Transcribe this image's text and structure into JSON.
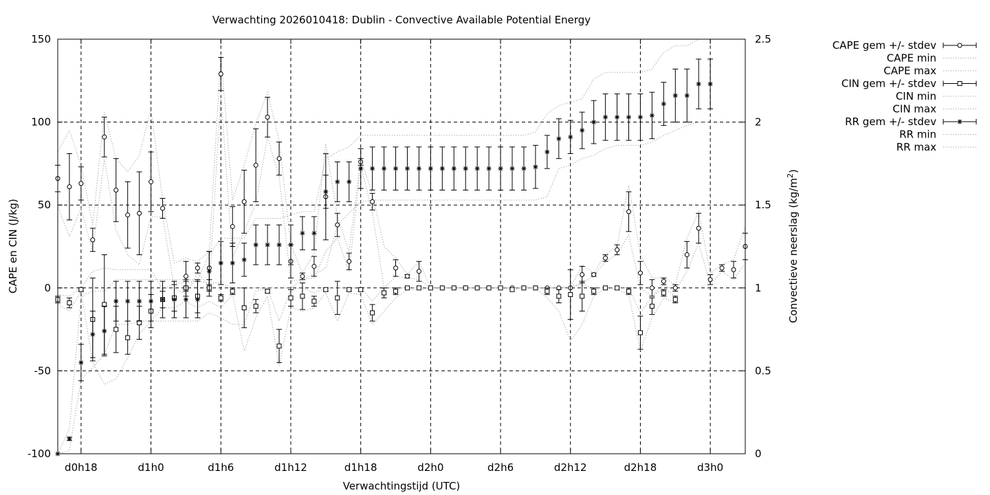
{
  "chart_data": {
    "type": "line",
    "title": "Verwachting 2026010418: Dublin - Convective Available Potential Energy",
    "xlabel": "Verwachtingstijd (UTC)",
    "ylabel": "CAPE en CIN (J/kg)",
    "y2label_main": "Convectieve neerslag (kg/m",
    "y2label_sup": "2",
    "y2label_end": ")",
    "x_ticks": [
      "d0h18",
      "d1h0",
      "d1h6",
      "d1h12",
      "d1h18",
      "d2h0",
      "d2h6",
      "d2h12",
      "d2h18",
      "d3h0"
    ],
    "x_range_hours": [
      -2,
      57
    ],
    "x_step_hours": 1,
    "ylim": [
      -100,
      150
    ],
    "y_ticks": [
      "-100",
      "-50",
      "0",
      "50",
      "100",
      "150"
    ],
    "y2lim": [
      0,
      2.5
    ],
    "y2_ticks": [
      "0",
      "0.5",
      "1",
      "1.5",
      "2",
      "2.5"
    ],
    "grid": true,
    "legend_position": "outside-right-top",
    "series": [
      {
        "name": "CAPE gem +/- stdev",
        "marker": "circle",
        "axis": "left",
        "mean": [
          66,
          61,
          63,
          29,
          91,
          59,
          44,
          45,
          64,
          48,
          null,
          7,
          12,
          12,
          129,
          37,
          52,
          74,
          103,
          78,
          16,
          7,
          13,
          55,
          38,
          16,
          76,
          52,
          null,
          12,
          7,
          10,
          0,
          0,
          0,
          0,
          0,
          0,
          0,
          0,
          0,
          0,
          0,
          0,
          0,
          8,
          8,
          18,
          23,
          46,
          9,
          0,
          4,
          0,
          20,
          36,
          5,
          12,
          11,
          25
        ],
        "sd": [
          8,
          20,
          10,
          7,
          12,
          19,
          20,
          25,
          18,
          6,
          null,
          9,
          3,
          10,
          10,
          12,
          19,
          22,
          12,
          10,
          10,
          2,
          6,
          26,
          7,
          5,
          2,
          5,
          null,
          5,
          1,
          6,
          0,
          0,
          0,
          0,
          0,
          0,
          0,
          0,
          0,
          0,
          0,
          0,
          0,
          5,
          1,
          2,
          3,
          12,
          7,
          5,
          2,
          2,
          8,
          9,
          3,
          2,
          5,
          8
        ]
      },
      {
        "name": "CAPE min",
        "axis": "left",
        "line": "dotted",
        "values": [
          49,
          31,
          48,
          22,
          78,
          35,
          20,
          14,
          43,
          43,
          0,
          -4,
          9,
          1,
          117,
          18,
          34,
          51,
          91,
          67,
          4,
          5,
          6,
          22,
          30,
          10,
          74,
          46,
          0,
          7,
          6,
          5,
          0,
          0,
          0,
          0,
          0,
          0,
          0,
          0,
          0,
          0,
          0,
          0,
          0,
          3,
          7,
          16,
          20,
          32,
          0,
          -5,
          2,
          -2,
          10,
          27,
          2,
          10,
          5,
          15
        ]
      },
      {
        "name": "CAPE max",
        "axis": "left",
        "line": "dotted",
        "values": [
          82,
          95,
          74,
          38,
          106,
          78,
          70,
          80,
          108,
          53,
          15,
          18,
          16,
          22,
          141,
          53,
          74,
          99,
          118,
          89,
          26,
          9,
          21,
          87,
          43,
          22,
          78,
          57,
          25,
          18,
          8,
          16,
          0,
          0,
          0,
          0,
          0,
          0,
          0,
          0,
          0,
          0,
          0,
          0,
          0,
          14,
          9,
          20,
          26,
          62,
          20,
          6,
          6,
          2,
          30,
          46,
          9,
          14,
          17,
          37
        ]
      },
      {
        "name": "CIN gem +/- stdev",
        "marker": "square",
        "axis": "left",
        "mean": [
          -7,
          -9,
          -1,
          -19,
          -10,
          -25,
          -30,
          -21,
          -14,
          -7,
          -6,
          0,
          -5,
          0,
          -6,
          -2,
          -12,
          -11,
          -2,
          -35,
          -6,
          -5,
          -8,
          -1,
          -6,
          -1,
          -1,
          -15,
          -3,
          -2,
          0,
          0,
          0,
          0,
          0,
          0,
          0,
          0,
          0,
          -1,
          0,
          0,
          -2,
          -5,
          -4,
          -5,
          -2,
          0,
          0,
          -2,
          -27,
          -11,
          -3,
          -7
        ],
        "sd": [
          2,
          3,
          1,
          25,
          30,
          14,
          10,
          10,
          10,
          5,
          8,
          5,
          10,
          5,
          2,
          2,
          12,
          4,
          1,
          10,
          5,
          8,
          3,
          1,
          10,
          1,
          1,
          5,
          3,
          2,
          0,
          0,
          0,
          0,
          0,
          0,
          0,
          0,
          0,
          0,
          0,
          0,
          2,
          4,
          15,
          9,
          2,
          0,
          0,
          2,
          10,
          5,
          2,
          2
        ]
      },
      {
        "name": "CIN min",
        "axis": "left",
        "line": "dotted",
        "values": [
          -10,
          -14,
          -2,
          -45,
          -58,
          -55,
          -42,
          -28,
          -20,
          -12,
          -12,
          -8,
          -12,
          -8,
          -12,
          -4,
          -38,
          -18,
          -5,
          -47,
          -12,
          -14,
          -12,
          -3,
          -20,
          -3,
          -4,
          -22,
          -14,
          -6,
          -1,
          -1,
          0,
          0,
          0,
          0,
          0,
          0,
          0,
          -1,
          0,
          0,
          -6,
          -14,
          -32,
          -22,
          -5,
          0,
          -1,
          -4,
          -38,
          -18,
          -6,
          -9
        ]
      },
      {
        "name": "CIN max",
        "axis": "left",
        "line": "dotted",
        "values": [
          -4,
          -5,
          0,
          10,
          12,
          11,
          11,
          11,
          11,
          -1,
          3,
          3,
          4,
          3,
          3,
          0,
          0,
          0,
          0,
          -20,
          -1,
          0,
          -3,
          0,
          0,
          0,
          0,
          -8,
          0,
          0,
          0,
          0,
          0,
          0,
          0,
          0,
          0,
          0,
          0,
          0,
          0,
          0,
          0,
          0,
          1,
          2,
          0,
          0,
          0,
          0,
          -15,
          -5,
          0,
          -5
        ]
      },
      {
        "name": "RR gem +/- stdev",
        "marker": "star",
        "axis": "right",
        "mean": [
          0,
          0.09,
          0.55,
          0.72,
          0.74,
          0.92,
          0.92,
          0.92,
          0.92,
          0.93,
          0.93,
          0.93,
          0.93,
          1.1,
          1.15,
          1.15,
          1.17,
          1.26,
          1.26,
          1.26,
          1.26,
          1.33,
          1.33,
          1.58,
          1.64,
          1.64,
          1.72,
          1.72,
          1.72,
          1.72,
          1.72,
          1.72,
          1.72,
          1.72,
          1.72,
          1.72,
          1.72,
          1.72,
          1.72,
          1.72,
          1.72,
          1.73,
          1.82,
          1.9,
          1.91,
          1.95,
          2,
          2.03,
          2.03,
          2.03,
          2.03,
          2.04,
          2.11,
          2.16,
          2.16,
          2.23,
          2.23
        ],
        "sd": [
          0,
          0.01,
          0.11,
          0.14,
          0.15,
          0.12,
          0.12,
          0.12,
          0.12,
          0.11,
          0.11,
          0.11,
          0.11,
          0.12,
          0.13,
          0.12,
          0.1,
          0.12,
          0.12,
          0.12,
          0.12,
          0.1,
          0.1,
          0.1,
          0.12,
          0.12,
          0.12,
          0.13,
          0.13,
          0.13,
          0.13,
          0.13,
          0.13,
          0.13,
          0.13,
          0.13,
          0.13,
          0.13,
          0.13,
          0.13,
          0.13,
          0.13,
          0.1,
          0.12,
          0.1,
          0.11,
          0.13,
          0.14,
          0.14,
          0.14,
          0.14,
          0.14,
          0.13,
          0.16,
          0.16,
          0.15,
          0.15
        ]
      },
      {
        "name": "RR min",
        "axis": "right",
        "line": "dotted",
        "values": [
          0,
          0.02,
          0.45,
          0.52,
          0.6,
          0.78,
          0.78,
          0.8,
          0.8,
          0.8,
          0.8,
          0.8,
          0.8,
          0.85,
          0.82,
          0.78,
          0.78,
          0.98,
          1,
          1,
          1,
          1.05,
          1.08,
          1.12,
          1.38,
          1.45,
          1.52,
          1.53,
          1.53,
          1.53,
          1.53,
          1.53,
          1.53,
          1.53,
          1.53,
          1.53,
          1.53,
          1.53,
          1.53,
          1.53,
          1.53,
          1.53,
          1.55,
          1.72,
          1.74,
          1.78,
          1.8,
          1.84,
          1.86,
          1.86,
          1.86,
          1.88,
          1.92,
          1.95,
          1.98,
          2,
          2
        ]
      },
      {
        "name": "RR max",
        "axis": "right",
        "line": "dotted",
        "values": [
          0,
          0.15,
          0.95,
          0.98,
          0.98,
          1.05,
          1.05,
          1.05,
          1.05,
          1.05,
          1.05,
          1.05,
          1.05,
          1.2,
          1.3,
          1.3,
          1.3,
          1.42,
          1.42,
          1.42,
          1.44,
          1.46,
          1.46,
          1.78,
          1.82,
          1.85,
          1.92,
          1.92,
          1.92,
          1.92,
          1.92,
          1.92,
          1.92,
          1.92,
          1.92,
          1.92,
          1.92,
          1.92,
          1.92,
          1.92,
          1.92,
          1.94,
          2.05,
          2.1,
          2.12,
          2.14,
          2.26,
          2.3,
          2.3,
          2.3,
          2.3,
          2.32,
          2.42,
          2.46,
          2.46,
          2.5,
          2.5
        ]
      }
    ]
  }
}
